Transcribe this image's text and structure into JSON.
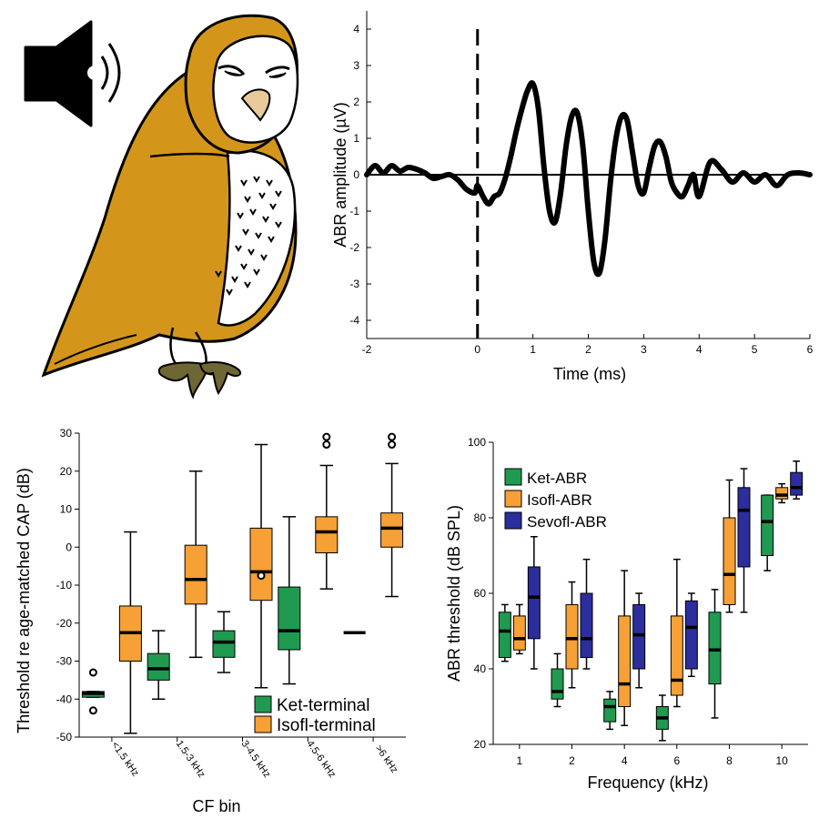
{
  "colors": {
    "owl_gold": "#d4961a",
    "owl_face": "#ffffff",
    "beak": "#e8c99a",
    "talons": "#6e6634",
    "ket": "#1f9a50",
    "isofl": "#f7a035",
    "sevofl": "#2b2e9c",
    "ink": "#000000"
  },
  "icons": [
    "speaker-icon",
    "barn-owl-illustration"
  ],
  "chart_data": [
    {
      "id": "abr-trace",
      "type": "line",
      "title": "",
      "xlabel": "Time (ms)",
      "ylabel": "ABR amplitude (µV)",
      "xlim": [
        -2,
        6
      ],
      "ylim": [
        -4.5,
        4.5
      ],
      "xticks": [
        -2,
        0,
        1,
        2,
        3,
        4,
        5,
        6
      ],
      "yticks": [
        4,
        3,
        2,
        1,
        0,
        -1,
        -2,
        -3,
        -4
      ],
      "stimulus_onset_ms": 0,
      "series": [
        {
          "x": [
            -2.0,
            -1.85,
            -1.7,
            -1.55,
            -1.4,
            -1.25,
            -1.1,
            -0.95,
            -0.8,
            -0.65,
            -0.5,
            -0.35,
            -0.2,
            -0.05,
            0.0,
            0.1,
            0.2,
            0.3,
            0.4,
            0.5,
            0.6,
            0.7,
            0.8,
            0.9,
            1.0,
            1.1,
            1.2,
            1.3,
            1.4,
            1.5,
            1.6,
            1.7,
            1.8,
            1.9,
            2.0,
            2.1,
            2.2,
            2.3,
            2.4,
            2.5,
            2.6,
            2.7,
            2.8,
            2.9,
            3.0,
            3.1,
            3.2,
            3.3,
            3.4,
            3.5,
            3.6,
            3.7,
            3.8,
            3.9,
            4.0,
            4.2,
            4.4,
            4.6,
            4.8,
            5.0,
            5.2,
            5.4,
            5.6,
            5.8,
            6.0
          ],
          "y": [
            0.0,
            0.25,
            0.05,
            0.25,
            0.1,
            0.2,
            0.15,
            0.05,
            -0.1,
            -0.05,
            0.0,
            -0.15,
            -0.4,
            -0.5,
            -0.3,
            -0.6,
            -0.8,
            -0.6,
            -0.5,
            -0.1,
            0.5,
            1.2,
            1.8,
            2.3,
            2.5,
            1.8,
            0.2,
            -1.0,
            -1.3,
            -0.5,
            0.8,
            1.6,
            1.7,
            0.8,
            -1.0,
            -2.4,
            -2.7,
            -1.8,
            -0.2,
            1.0,
            1.6,
            1.5,
            0.6,
            -0.3,
            -0.5,
            0.2,
            0.8,
            0.9,
            0.5,
            -0.2,
            -0.5,
            -0.6,
            -0.3,
            0.0,
            -0.6,
            0.35,
            0.15,
            -0.2,
            0.05,
            -0.2,
            0.0,
            -0.3,
            0.0,
            0.05,
            0.0
          ]
        }
      ]
    },
    {
      "id": "cap-threshold",
      "type": "box",
      "title": "",
      "xlabel": "CF bin",
      "ylabel": "Threshold re age-matched CAP (dB)",
      "ylim": [
        -50,
        30
      ],
      "yticks": [
        30,
        20,
        10,
        0,
        -10,
        -20,
        -30,
        -40,
        -50
      ],
      "categories": [
        "<1.5 kHz",
        "1.5-3 kHz",
        "3-4.5 kHz",
        "4.5-6 kHz",
        ">6 kHz"
      ],
      "legend": {
        "placement": "bottom-right",
        "entries": [
          "Ket-terminal",
          "Isofl-terminal"
        ]
      },
      "series": [
        {
          "name": "Ket-terminal",
          "color_key": "ket",
          "boxes": [
            {
              "min": -39.5,
              "q1": -39.5,
              "median": -38.5,
              "q3": -38.0,
              "max": -38.0,
              "outliers": [
                -33,
                -43
              ]
            },
            {
              "min": -40,
              "q1": -35,
              "median": -32,
              "q3": -28,
              "max": -22,
              "outliers": []
            },
            {
              "min": -33,
              "q1": -29,
              "median": -25,
              "q3": -22,
              "max": -17,
              "outliers": []
            },
            {
              "min": -36,
              "q1": -27,
              "median": -22,
              "q3": -10.5,
              "max": 8,
              "outliers": []
            },
            {
              "min": -22.5,
              "q1": -22.5,
              "median": -22.5,
              "q3": -22.5,
              "max": -22.5,
              "outliers": []
            }
          ]
        },
        {
          "name": "Isofl-terminal",
          "color_key": "isofl",
          "boxes": [
            {
              "min": -49,
              "q1": -30,
              "median": -22.5,
              "q3": -15.5,
              "max": 4,
              "outliers": []
            },
            {
              "min": -29,
              "q1": -15,
              "median": -8.5,
              "q3": 0.5,
              "max": 20,
              "outliers": []
            },
            {
              "min": -37,
              "q1": -14,
              "median": -6.5,
              "q3": 5,
              "max": 27,
              "outliers": [
                -7.5
              ]
            },
            {
              "min": -11,
              "q1": -1.5,
              "median": 4,
              "q3": 8,
              "max": 21.5,
              "outliers": [
                27,
                29
              ]
            },
            {
              "min": -13,
              "q1": 0,
              "median": 5,
              "q3": 9,
              "max": 22,
              "outliers": [
                27,
                29
              ]
            }
          ]
        }
      ]
    },
    {
      "id": "abr-threshold",
      "type": "box",
      "title": "",
      "xlabel": "Frequency (kHz)",
      "ylabel": "ABR threshold (dB SPL)",
      "ylim": [
        20,
        100
      ],
      "yticks": [
        100,
        80,
        60,
        40,
        20
      ],
      "categories": [
        "1",
        "2",
        "4",
        "6",
        "8",
        "10"
      ],
      "legend": {
        "placement": "top-left",
        "entries": [
          "Ket-ABR",
          "Isofl-ABR",
          "Sevofl-ABR"
        ]
      },
      "series": [
        {
          "name": "Ket-ABR",
          "color_key": "ket",
          "boxes": [
            {
              "min": 42,
              "q1": 43,
              "median": 50,
              "q3": 55,
              "max": 57
            },
            {
              "min": 30,
              "q1": 32,
              "median": 34,
              "q3": 40,
              "max": 44
            },
            {
              "min": 24,
              "q1": 26,
              "median": 30,
              "q3": 32,
              "max": 34
            },
            {
              "min": 21,
              "q1": 24,
              "median": 27,
              "q3": 30,
              "max": 33
            },
            {
              "min": 27,
              "q1": 36,
              "median": 45,
              "q3": 55,
              "max": 61
            },
            {
              "min": 66,
              "q1": 70,
              "median": 79,
              "q3": 86,
              "max": 86
            }
          ]
        },
        {
          "name": "Isofl-ABR",
          "color_key": "isofl",
          "boxes": [
            {
              "min": 44,
              "q1": 45,
              "median": 48,
              "q3": 54,
              "max": 57
            },
            {
              "min": 35,
              "q1": 40,
              "median": 48,
              "q3": 57,
              "max": 63
            },
            {
              "min": 25,
              "q1": 30,
              "median": 36,
              "q3": 54,
              "max": 66
            },
            {
              "min": 30,
              "q1": 33,
              "median": 37,
              "q3": 54,
              "max": 69
            },
            {
              "min": 55,
              "q1": 57,
              "median": 65,
              "q3": 80,
              "max": 90
            },
            {
              "min": 84,
              "q1": 85,
              "median": 86,
              "q3": 88,
              "max": 89
            }
          ]
        },
        {
          "name": "Sevofl-ABR",
          "color_key": "sevofl",
          "boxes": [
            {
              "min": 40,
              "q1": 48,
              "median": 59,
              "q3": 67,
              "max": 75
            },
            {
              "min": 40,
              "q1": 43,
              "median": 48,
              "q3": 60,
              "max": 69
            },
            {
              "min": 35,
              "q1": 40,
              "median": 49,
              "q3": 57,
              "max": 60
            },
            {
              "min": 38,
              "q1": 40,
              "median": 51,
              "q3": 58,
              "max": 60
            },
            {
              "min": 55,
              "q1": 67,
              "median": 82,
              "q3": 88,
              "max": 93
            },
            {
              "min": 85,
              "q1": 86,
              "median": 88,
              "q3": 92,
              "max": 95
            }
          ]
        }
      ]
    }
  ]
}
